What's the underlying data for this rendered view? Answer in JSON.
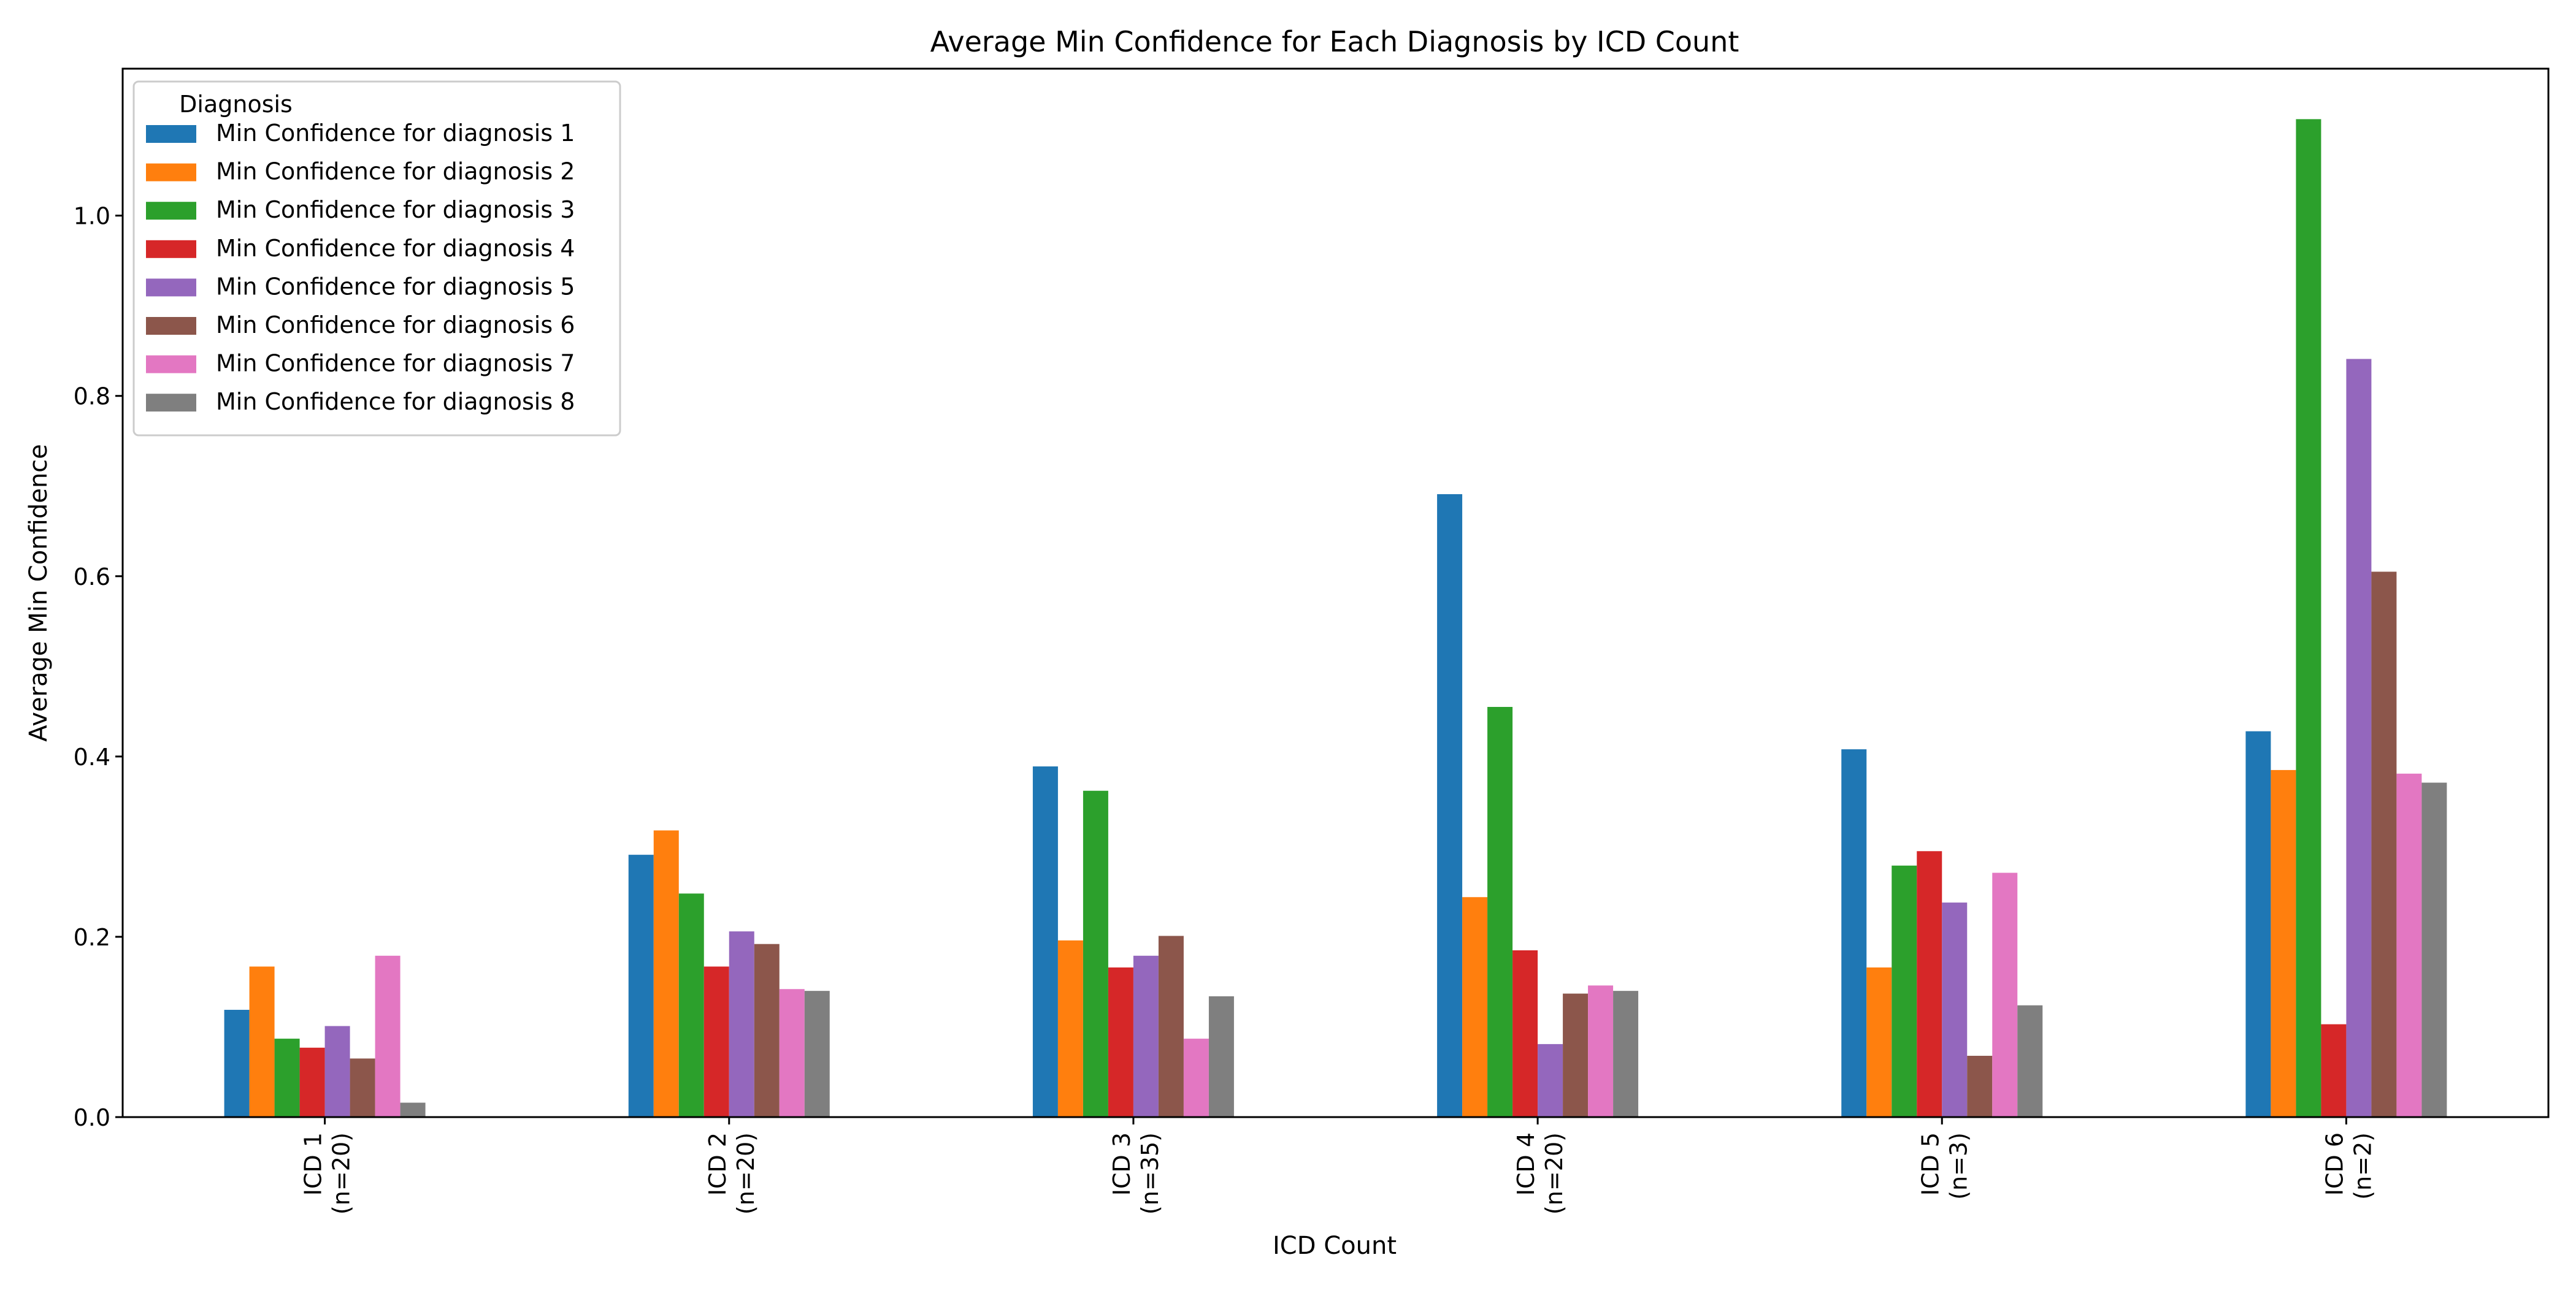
{
  "chart_data": {
    "type": "bar",
    "title": "Average Min Confidence for Each Diagnosis by ICD Count",
    "xlabel": "ICD Count",
    "ylabel": "Average Min Confidence",
    "ylim": [
      0,
      1.163
    ],
    "yticks": [
      "0.0",
      "0.2",
      "0.4",
      "0.6",
      "0.8",
      "1.0"
    ],
    "categories": [
      [
        "ICD 1",
        "(n=20)"
      ],
      [
        "ICD 2",
        "(n=20)"
      ],
      [
        "ICD 3",
        "(n=35)"
      ],
      [
        "ICD 4",
        "(n=20)"
      ],
      [
        "ICD 5",
        "(n=3)"
      ],
      [
        "ICD 6",
        "(n=2)"
      ]
    ],
    "legend_title": "Diagnosis",
    "legend_position": "upper-left",
    "grid": false,
    "series": [
      {
        "name": "Min Confidence for diagnosis 1",
        "color": "#1f77b4",
        "values": [
          0.119,
          0.291,
          0.389,
          0.691,
          0.408,
          0.428
        ]
      },
      {
        "name": "Min Confidence for diagnosis 2",
        "color": "#ff7f0e",
        "values": [
          0.167,
          0.318,
          0.196,
          0.244,
          0.166,
          0.385
        ]
      },
      {
        "name": "Min Confidence for diagnosis 3",
        "color": "#2ca02c",
        "values": [
          0.087,
          0.248,
          0.362,
          0.455,
          0.279,
          1.107
        ]
      },
      {
        "name": "Min Confidence for diagnosis 4",
        "color": "#d62728",
        "values": [
          0.077,
          0.167,
          0.166,
          0.185,
          0.295,
          0.103
        ]
      },
      {
        "name": "Min Confidence for diagnosis 5",
        "color": "#9467bd",
        "values": [
          0.101,
          0.206,
          0.179,
          0.081,
          0.238,
          0.841
        ]
      },
      {
        "name": "Min Confidence for diagnosis 6",
        "color": "#8c564b",
        "values": [
          0.065,
          0.192,
          0.201,
          0.137,
          0.068,
          0.605
        ]
      },
      {
        "name": "Min Confidence for diagnosis 7",
        "color": "#e377c2",
        "values": [
          0.179,
          0.142,
          0.087,
          0.146,
          0.271,
          0.381
        ]
      },
      {
        "name": "Min Confidence for diagnosis 8",
        "color": "#7f7f7f",
        "values": [
          0.016,
          0.14,
          0.134,
          0.14,
          0.124,
          0.371
        ]
      }
    ]
  }
}
